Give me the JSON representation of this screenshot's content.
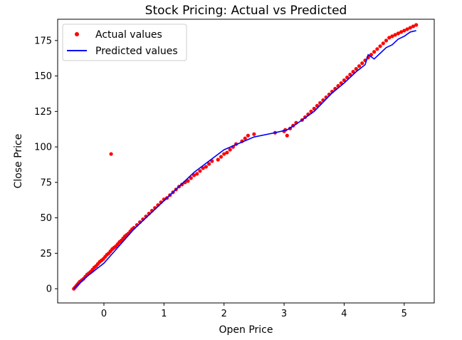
{
  "chart_data": {
    "type": "scatter",
    "title": "Stock Pricing: Actual vs Predicted",
    "xlabel": "Open Price",
    "ylabel": "Close Price",
    "xlim": [
      -0.77,
      5.5
    ],
    "ylim": [
      -10,
      190
    ],
    "xticks": [
      0,
      1,
      2,
      3,
      4,
      5
    ],
    "yticks": [
      0,
      25,
      50,
      75,
      100,
      125,
      150,
      175
    ],
    "grid": false,
    "legend_position": "top-left",
    "series": [
      {
        "name": "Actual values",
        "kind": "scatter",
        "color": "#ff0000",
        "x": [
          -0.5,
          -0.48,
          -0.46,
          -0.44,
          -0.42,
          -0.4,
          -0.37,
          -0.34,
          -0.31,
          -0.28,
          -0.25,
          -0.22,
          -0.19,
          -0.16,
          -0.13,
          -0.1,
          -0.07,
          -0.04,
          -0.01,
          0.02,
          0.05,
          0.08,
          0.11,
          0.14,
          0.17,
          0.2,
          0.23,
          0.26,
          0.29,
          0.32,
          0.35,
          0.38,
          0.41,
          0.44,
          0.47,
          0.5,
          0.55,
          0.6,
          0.65,
          0.7,
          0.75,
          0.8,
          0.85,
          0.9,
          0.95,
          1.0,
          1.05,
          1.1,
          1.15,
          1.2,
          1.25,
          1.3,
          1.35,
          1.4,
          1.45,
          1.5,
          1.55,
          1.6,
          1.65,
          1.7,
          1.75,
          1.8,
          1.9,
          1.95,
          2.0,
          2.05,
          2.1,
          2.15,
          2.2,
          2.3,
          2.35,
          2.4,
          2.5,
          2.85,
          3.0,
          3.02,
          3.05,
          3.1,
          3.15,
          3.2,
          3.3,
          3.35,
          3.4,
          3.45,
          3.5,
          3.55,
          3.6,
          3.65,
          3.7,
          3.75,
          3.8,
          3.85,
          3.9,
          3.95,
          4.0,
          4.05,
          4.1,
          4.15,
          4.2,
          4.25,
          4.3,
          4.35,
          4.4,
          4.45,
          4.5,
          4.55,
          4.6,
          4.65,
          4.7,
          4.75,
          4.8,
          4.85,
          4.9,
          4.95,
          5.0,
          5.05,
          5.1,
          5.15,
          5.2,
          0.12
        ],
        "y": [
          0,
          1,
          2,
          3,
          4,
          5,
          6,
          7,
          8.5,
          10,
          11,
          12,
          13.5,
          15,
          16,
          17.5,
          19,
          20,
          21,
          22.5,
          24,
          25,
          26.5,
          28,
          29,
          30,
          31.5,
          33,
          34,
          35.5,
          37,
          38,
          39,
          40.5,
          42,
          43,
          45,
          47,
          49,
          51,
          53,
          55,
          57,
          59,
          61,
          63,
          64,
          66,
          68,
          70,
          72,
          73.5,
          75,
          76,
          78,
          80,
          81,
          83,
          85,
          86,
          88,
          90,
          91,
          93,
          95,
          96,
          98,
          100,
          102,
          104,
          106,
          108,
          109,
          110,
          111,
          112,
          108,
          113,
          115,
          117,
          119,
          121,
          123,
          125,
          127,
          129,
          131,
          133,
          135,
          137,
          139,
          141,
          143,
          145,
          147,
          149,
          151,
          153,
          155,
          157,
          159,
          161,
          163,
          165,
          167,
          169,
          171,
          173,
          175,
          177,
          178,
          179,
          180,
          181,
          182,
          183,
          184,
          185,
          186,
          95
        ],
        "size": 6
      },
      {
        "name": "Predicted values",
        "kind": "line",
        "color": "#0000ff",
        "x": [
          -0.5,
          -0.3,
          0,
          0.5,
          1.0,
          1.5,
          2.0,
          2.5,
          2.85,
          3.05,
          3.2,
          3.5,
          3.8,
          4.0,
          4.2,
          4.35,
          4.4,
          4.5,
          4.6,
          4.7,
          4.8,
          4.9,
          5.0,
          5.1,
          5.2
        ],
        "y": [
          0,
          8,
          18,
          42,
          62,
          82,
          98,
          107,
          110,
          112,
          116,
          125,
          138,
          145,
          153,
          158,
          165,
          162,
          166,
          170,
          172,
          176,
          178,
          181,
          182
        ]
      }
    ]
  }
}
